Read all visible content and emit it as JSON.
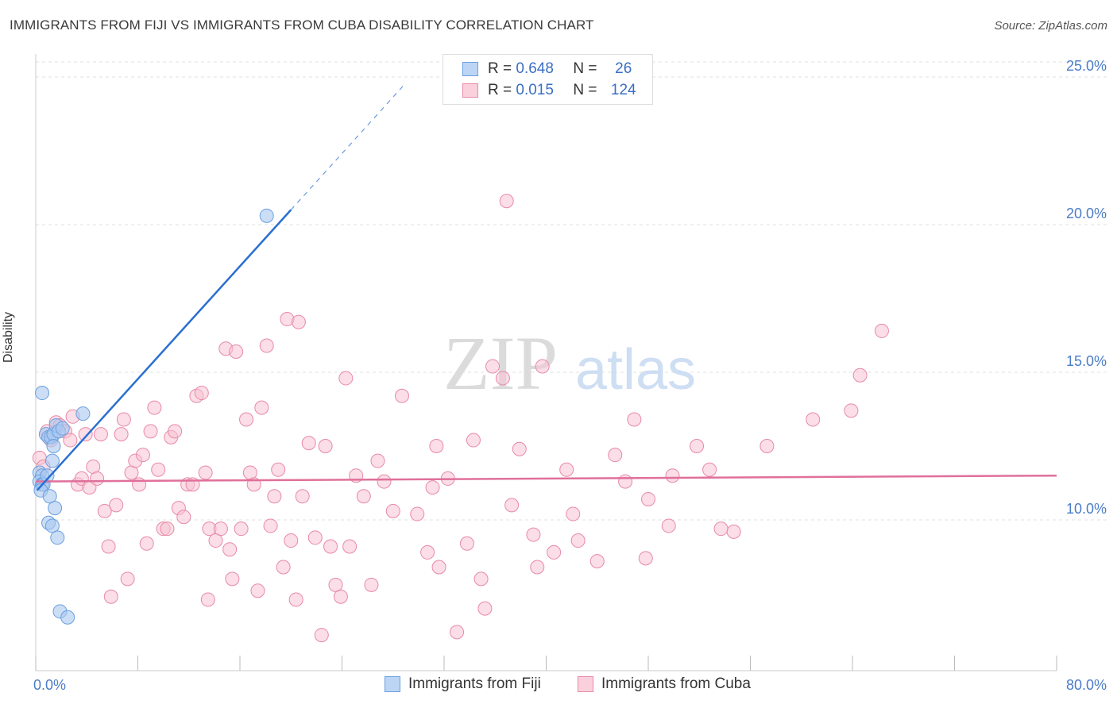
{
  "title": "IMMIGRANTS FROM FIJI VS IMMIGRANTS FROM CUBA DISABILITY CORRELATION CHART",
  "source": "Source: ZipAtlas.com",
  "watermark": {
    "zip": "ZIP",
    "atlas": "atlas"
  },
  "legend_top": {
    "fiji": {
      "r_label": "R = ",
      "r_value": "0.648",
      "n_label": "N = ",
      "n_value": "26"
    },
    "cuba": {
      "r_label": "R = ",
      "r_value": "0.015",
      "n_label": "N = ",
      "n_value": "124"
    }
  },
  "legend_bottom": {
    "fiji": "Immigrants from Fiji",
    "cuba": "Immigrants from Cuba"
  },
  "colors": {
    "fiji_fill": "#a9c8f0",
    "fiji_stroke": "#6a9fe0",
    "fiji_line": "#2a6fd1",
    "cuba_fill": "#f7c3d3",
    "cuba_stroke": "#e88aa8",
    "cuba_line": "#e0709a",
    "grid": "#e2e2e2",
    "tick_text": "#4a7cc7"
  },
  "chart_data": {
    "type": "scatter",
    "ylabel": "Disability",
    "xlim": [
      0,
      80
    ],
    "ylim": [
      5,
      26
    ],
    "x_tick_labels": {
      "min": "0.0%",
      "max": "80.0%"
    },
    "y_ticks": [
      {
        "value": 10,
        "label": "10.0%"
      },
      {
        "value": 15,
        "label": "15.0%"
      },
      {
        "value": 20,
        "label": "20.0%"
      },
      {
        "value": 25,
        "label": "25.0%"
      }
    ],
    "grid": true,
    "series": [
      {
        "name": "Immigrants from Fiji",
        "trend": {
          "x0": 0.1,
          "y0": 11.0,
          "x1": 20.0,
          "y1": 20.5,
          "dashed_to_x": 29
        },
        "points": [
          [
            0.3,
            11.6
          ],
          [
            0.5,
            11.5
          ],
          [
            0.3,
            11.3
          ],
          [
            0.5,
            11.2
          ],
          [
            0.6,
            11.2
          ],
          [
            0.4,
            11.0
          ],
          [
            0.5,
            14.3
          ],
          [
            0.8,
            12.9
          ],
          [
            1.0,
            12.8
          ],
          [
            1.2,
            12.8
          ],
          [
            1.4,
            12.9
          ],
          [
            1.6,
            13.2
          ],
          [
            1.8,
            13.0
          ],
          [
            2.1,
            13.1
          ],
          [
            1.4,
            12.5
          ],
          [
            1.3,
            12.0
          ],
          [
            0.9,
            11.5
          ],
          [
            1.1,
            10.8
          ],
          [
            1.5,
            10.4
          ],
          [
            1.0,
            9.9
          ],
          [
            1.3,
            9.8
          ],
          [
            1.7,
            9.4
          ],
          [
            3.7,
            13.6
          ],
          [
            1.9,
            6.9
          ],
          [
            2.5,
            6.7
          ],
          [
            18.1,
            20.3
          ]
        ]
      },
      {
        "name": "Immigrants from Cuba",
        "trend": {
          "x0": 0,
          "y0": 11.3,
          "x1": 80,
          "y1": 11.5
        },
        "points": [
          [
            0.3,
            12.1
          ],
          [
            0.6,
            11.8
          ],
          [
            0.9,
            13.0
          ],
          [
            1.2,
            12.7
          ],
          [
            1.6,
            13.3
          ],
          [
            1.9,
            13.2
          ],
          [
            2.3,
            13.0
          ],
          [
            2.7,
            12.7
          ],
          [
            2.9,
            13.5
          ],
          [
            3.3,
            11.2
          ],
          [
            3.6,
            11.4
          ],
          [
            3.9,
            12.9
          ],
          [
            4.2,
            11.1
          ],
          [
            4.5,
            11.8
          ],
          [
            4.8,
            11.4
          ],
          [
            5.1,
            12.9
          ],
          [
            5.4,
            10.3
          ],
          [
            5.7,
            9.1
          ],
          [
            5.9,
            7.4
          ],
          [
            6.3,
            10.5
          ],
          [
            6.7,
            12.9
          ],
          [
            6.9,
            13.4
          ],
          [
            7.2,
            8.0
          ],
          [
            7.5,
            11.6
          ],
          [
            7.8,
            12.0
          ],
          [
            8.1,
            11.2
          ],
          [
            8.4,
            12.2
          ],
          [
            8.7,
            9.2
          ],
          [
            9.0,
            13.0
          ],
          [
            9.3,
            13.8
          ],
          [
            9.6,
            11.7
          ],
          [
            10.0,
            9.7
          ],
          [
            10.3,
            9.7
          ],
          [
            10.6,
            12.8
          ],
          [
            10.9,
            13.0
          ],
          [
            11.2,
            10.4
          ],
          [
            11.6,
            10.1
          ],
          [
            11.9,
            11.2
          ],
          [
            12.3,
            11.2
          ],
          [
            12.6,
            14.2
          ],
          [
            13.0,
            14.3
          ],
          [
            13.3,
            11.6
          ],
          [
            13.5,
            7.3
          ],
          [
            13.6,
            9.7
          ],
          [
            14.1,
            9.3
          ],
          [
            14.5,
            9.7
          ],
          [
            14.9,
            15.8
          ],
          [
            15.2,
            9.0
          ],
          [
            15.4,
            8.0
          ],
          [
            15.7,
            15.7
          ],
          [
            16.1,
            9.7
          ],
          [
            16.5,
            13.4
          ],
          [
            16.8,
            11.6
          ],
          [
            17.1,
            11.2
          ],
          [
            17.4,
            7.6
          ],
          [
            17.7,
            13.8
          ],
          [
            18.1,
            15.9
          ],
          [
            18.4,
            9.8
          ],
          [
            18.7,
            10.8
          ],
          [
            19.0,
            11.7
          ],
          [
            19.4,
            8.4
          ],
          [
            19.7,
            16.8
          ],
          [
            20.0,
            9.3
          ],
          [
            20.4,
            7.3
          ],
          [
            20.6,
            16.7
          ],
          [
            20.9,
            10.8
          ],
          [
            21.4,
            12.6
          ],
          [
            21.9,
            9.4
          ],
          [
            22.4,
            6.1
          ],
          [
            22.7,
            12.5
          ],
          [
            23.1,
            9.1
          ],
          [
            23.5,
            7.8
          ],
          [
            23.9,
            7.4
          ],
          [
            24.3,
            14.8
          ],
          [
            24.6,
            9.1
          ],
          [
            25.1,
            11.5
          ],
          [
            25.7,
            10.8
          ],
          [
            26.3,
            7.8
          ],
          [
            26.8,
            12.0
          ],
          [
            27.3,
            11.3
          ],
          [
            28.0,
            10.3
          ],
          [
            28.7,
            14.2
          ],
          [
            29.9,
            10.2
          ],
          [
            30.7,
            8.9
          ],
          [
            31.1,
            11.1
          ],
          [
            31.4,
            12.5
          ],
          [
            31.6,
            8.4
          ],
          [
            32.3,
            11.4
          ],
          [
            33.0,
            6.2
          ],
          [
            33.8,
            9.2
          ],
          [
            34.3,
            12.7
          ],
          [
            34.9,
            8.0
          ],
          [
            35.2,
            7.0
          ],
          [
            35.8,
            15.2
          ],
          [
            36.6,
            14.8
          ],
          [
            36.9,
            20.8
          ],
          [
            37.3,
            10.5
          ],
          [
            37.9,
            12.4
          ],
          [
            39.0,
            9.5
          ],
          [
            39.3,
            8.4
          ],
          [
            39.7,
            15.2
          ],
          [
            40.6,
            8.9
          ],
          [
            41.6,
            11.7
          ],
          [
            42.1,
            10.2
          ],
          [
            42.5,
            9.3
          ],
          [
            44.0,
            8.6
          ],
          [
            45.4,
            12.2
          ],
          [
            46.2,
            11.3
          ],
          [
            46.9,
            13.4
          ],
          [
            47.8,
            8.7
          ],
          [
            48.0,
            10.7
          ],
          [
            49.6,
            9.8
          ],
          [
            49.9,
            11.5
          ],
          [
            51.8,
            12.5
          ],
          [
            52.8,
            11.7
          ],
          [
            53.7,
            9.7
          ],
          [
            54.7,
            9.6
          ],
          [
            57.3,
            12.5
          ],
          [
            60.9,
            13.4
          ],
          [
            63.9,
            13.7
          ],
          [
            64.6,
            14.9
          ],
          [
            66.3,
            16.4
          ]
        ]
      }
    ]
  }
}
